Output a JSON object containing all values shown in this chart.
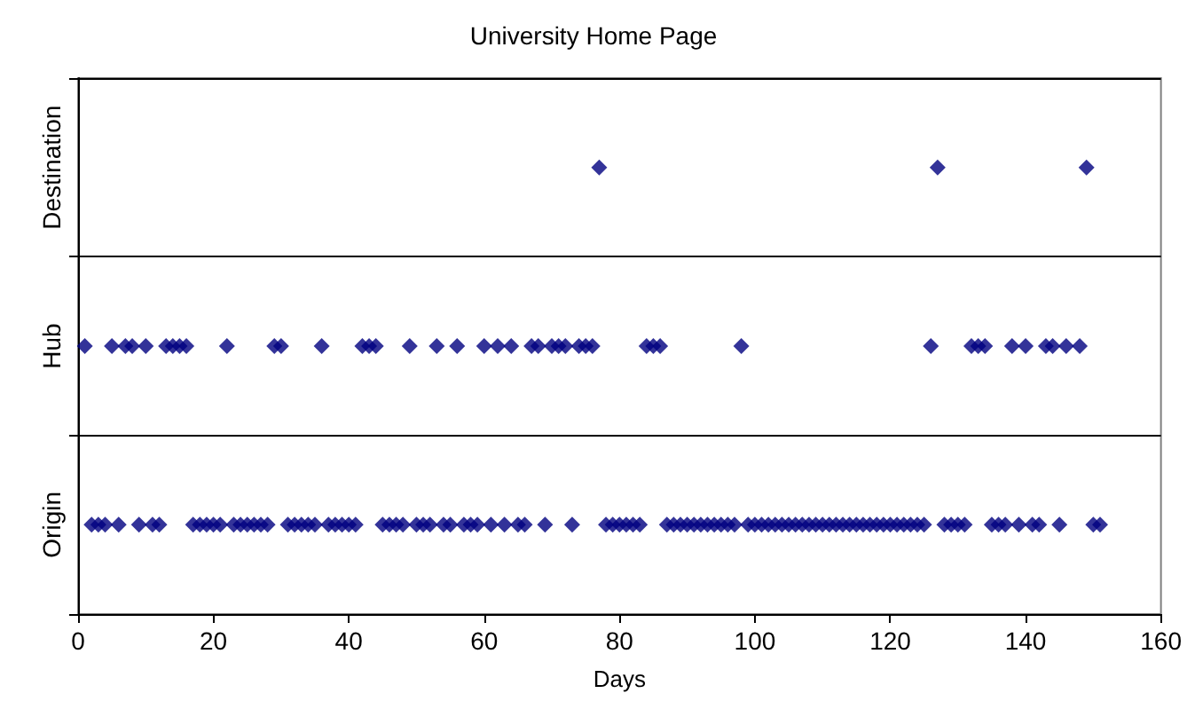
{
  "chart_data": {
    "type": "scatter",
    "orientation": "horizontal",
    "title": "University Home Page",
    "xlabel": "Days",
    "xlim": [
      0,
      160
    ],
    "xticks": [
      0,
      20,
      40,
      60,
      80,
      100,
      120,
      140,
      160
    ],
    "categories": [
      "Destination",
      "Hub",
      "Origin"
    ],
    "grid": "y",
    "marker": "diamond",
    "series": [
      {
        "color": "#000080",
        "values": [
          2,
          3,
          4,
          6,
          9,
          11,
          12,
          17,
          18,
          19,
          20,
          21,
          23,
          24,
          25,
          26,
          27,
          28,
          31,
          32,
          33,
          34,
          35,
          37,
          38,
          39,
          40,
          41,
          45,
          46,
          47,
          48,
          50,
          51,
          52,
          54,
          55,
          57,
          58,
          59,
          61,
          63,
          65,
          66,
          69,
          73,
          78,
          79,
          80,
          81,
          82,
          83,
          87,
          88,
          89,
          90,
          91,
          92,
          93,
          94,
          95,
          96,
          97,
          99,
          100,
          101,
          102,
          103,
          104,
          105,
          106,
          107,
          108,
          109,
          110,
          111,
          112,
          113,
          114,
          115,
          116,
          117,
          118,
          119,
          120,
          121,
          122,
          123,
          124,
          125,
          128,
          129,
          130,
          131,
          135,
          136,
          137,
          139,
          141,
          142,
          145,
          150,
          151
        ],
        "x": [
          "Origin",
          "Origin",
          "Origin",
          "Origin",
          "Origin",
          "Origin",
          "Origin",
          "Origin",
          "Origin",
          "Origin",
          "Origin",
          "Origin",
          "Origin",
          "Origin",
          "Origin",
          "Origin",
          "Origin",
          "Origin",
          "Origin",
          "Origin",
          "Origin",
          "Origin",
          "Origin",
          "Origin",
          "Origin",
          "Origin",
          "Origin",
          "Origin",
          "Origin",
          "Origin",
          "Origin",
          "Origin",
          "Origin",
          "Origin",
          "Origin",
          "Origin",
          "Origin",
          "Origin",
          "Origin",
          "Origin",
          "Origin",
          "Origin",
          "Origin",
          "Origin",
          "Origin",
          "Origin",
          "Origin",
          "Origin",
          "Origin",
          "Origin",
          "Origin",
          "Origin",
          "Origin",
          "Origin",
          "Origin",
          "Origin",
          "Origin",
          "Origin",
          "Origin",
          "Origin",
          "Origin",
          "Origin",
          "Origin",
          "Origin",
          "Origin",
          "Origin",
          "Origin",
          "Origin",
          "Origin",
          "Origin",
          "Origin",
          "Origin",
          "Origin",
          "Origin",
          "Origin",
          "Origin",
          "Origin",
          "Origin",
          "Origin",
          "Origin",
          "Origin",
          "Origin",
          "Origin",
          "Origin",
          "Origin",
          "Origin",
          "Origin",
          "Origin",
          "Origin",
          "Origin",
          "Origin",
          "Origin",
          "Origin",
          "Origin",
          "Origin",
          "Origin",
          "Origin",
          "Origin",
          "Origin",
          "Origin",
          "Origin",
          "Origin",
          "Origin"
        ]
      },
      {
        "color": "#000080",
        "values": [
          1,
          5,
          7,
          8,
          10,
          13,
          14,
          15,
          16,
          22,
          29,
          30,
          36,
          42,
          43,
          44,
          49,
          53,
          56,
          60,
          62,
          64,
          67,
          68,
          70,
          71,
          72,
          74,
          75,
          76,
          84,
          85,
          86,
          98,
          126,
          132,
          133,
          134,
          138,
          140,
          143,
          144,
          146,
          148
        ],
        "x": [
          "Hub",
          "Hub",
          "Hub",
          "Hub",
          "Hub",
          "Hub",
          "Hub",
          "Hub",
          "Hub",
          "Hub",
          "Hub",
          "Hub",
          "Hub",
          "Hub",
          "Hub",
          "Hub",
          "Hub",
          "Hub",
          "Hub",
          "Hub",
          "Hub",
          "Hub",
          "Hub",
          "Hub",
          "Hub",
          "Hub",
          "Hub",
          "Hub",
          "Hub",
          "Hub",
          "Hub",
          "Hub",
          "Hub",
          "Hub",
          "Hub",
          "Hub",
          "Hub",
          "Hub",
          "Hub",
          "Hub",
          "Hub",
          "Hub",
          "Hub",
          "Hub"
        ]
      },
      {
        "color": "#000080",
        "values": [
          77,
          127,
          149
        ],
        "x": [
          "Destination",
          "Destination",
          "Destination"
        ]
      }
    ]
  }
}
